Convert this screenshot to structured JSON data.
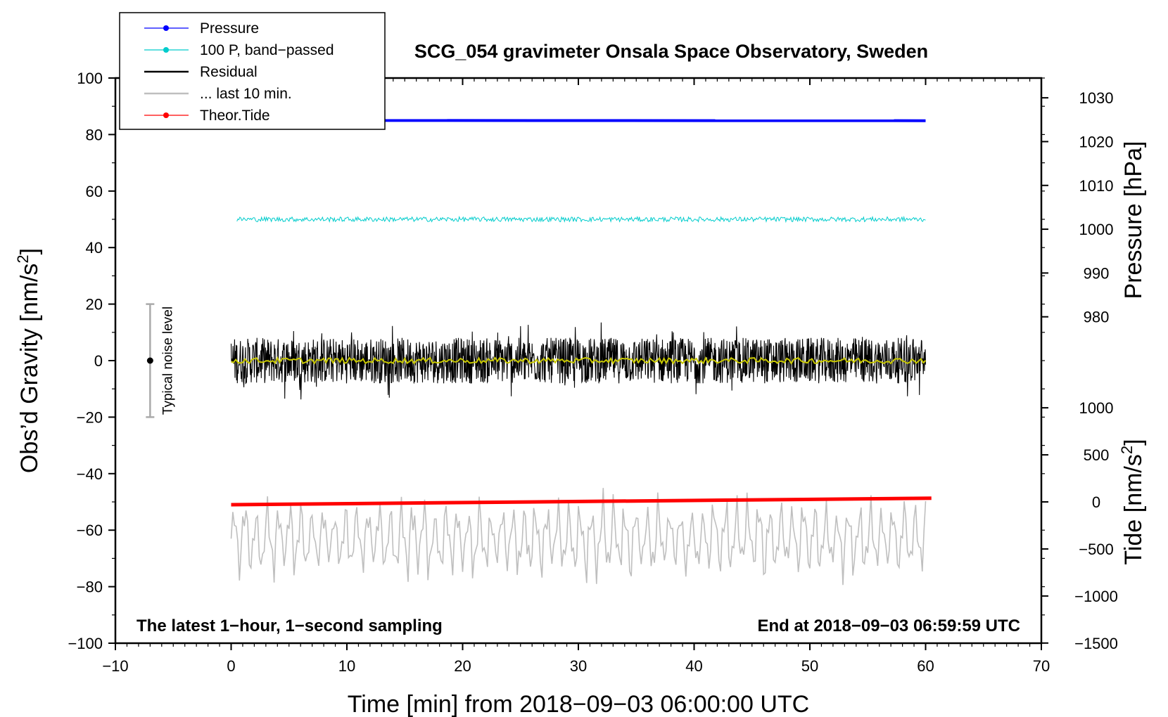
{
  "chart_data": {
    "type": "line",
    "title": "SCG_054 gravimeter Onsala Space Observatory, Sweden",
    "xlabel": "Time [min] from 2018−09−03 06:00:00 UTC",
    "xlim": [
      -10,
      70
    ],
    "xticks": [
      "−10",
      "0",
      "10",
      "20",
      "30",
      "40",
      "50",
      "60",
      "70"
    ],
    "xtick_values": [
      -10,
      0,
      10,
      20,
      30,
      40,
      50,
      60,
      70
    ],
    "left_axis": {
      "label_main": "Obs’d Gravity [nm/s",
      "label_sup": "2",
      "label_end": "]",
      "ylim": [
        -100,
        100
      ],
      "tick_values": [
        -100,
        -80,
        -60,
        -40,
        -20,
        0,
        20,
        40,
        60,
        80,
        100
      ],
      "ticks": [
        "−100",
        "−80",
        "−60",
        "−40",
        "−20",
        "0",
        "20",
        "40",
        "60",
        "80",
        "100"
      ]
    },
    "pressure_axis": {
      "label": "Pressure [hPa]",
      "tick_values": [
        980,
        990,
        1000,
        1010,
        1020,
        1030
      ],
      "ticks": [
        "980",
        "990",
        "1000",
        "1010",
        "1020",
        "1030"
      ],
      "gravity_at_1000": 46.5,
      "gravity_per_hpa": 1.55
    },
    "tide_axis": {
      "label_main": "Tide [nm/s",
      "label_sup": "2",
      "label_end": "]",
      "tick_values": [
        -1500,
        -1000,
        -500,
        0,
        500,
        1000
      ],
      "ticks": [
        "−1500",
        "−1000",
        "−500",
        "0",
        "500",
        "1000"
      ],
      "gravity_at_0": -50,
      "gravity_per_unit": 0.0333
    },
    "legend": [
      {
        "label": "Pressure",
        "color": "#0000ff",
        "style": "line-dot"
      },
      {
        "label": "100 P, band−passed",
        "color": "#00cccc",
        "style": "line-dot"
      },
      {
        "label": "Residual",
        "color": "#000000",
        "style": "line"
      },
      {
        "label": "... last 10 min.",
        "color": "#bfbfbf",
        "style": "line"
      },
      {
        "label": "Theor.Tide",
        "color": "#ff0000",
        "style": "line-dot"
      }
    ],
    "series": [
      {
        "name": "Pressure",
        "color": "#0000ff",
        "x_start": 0,
        "x_end": 60,
        "y_start": 85,
        "y_end": 84.9,
        "pressure_hpa": 1024.2
      },
      {
        "name": "100 P, band−passed",
        "color": "#00cccc",
        "x_start": 0.5,
        "x_end": 60,
        "mean": 50,
        "amplitude": 1.2
      },
      {
        "name": "Residual",
        "color": "#000000",
        "x_start": 0,
        "x_end": 60,
        "mean": 0,
        "amplitude": 18
      },
      {
        "name": "Residual smoothed",
        "color": "#c8c800",
        "x_start": 0,
        "x_end": 60,
        "mean": 0,
        "amplitude": 1
      },
      {
        "name": "... last 10 min.",
        "color": "#bfbfbf",
        "x_start": 0,
        "x_end": 60,
        "mean": -63,
        "amplitude": 16
      },
      {
        "name": "Theor.Tide",
        "color": "#ff0000",
        "x_start": 0,
        "x_end": 60.5,
        "y_start": -51,
        "y_end": -48.7
      }
    ],
    "noise_bar": {
      "label": "Typical noise level",
      "x": -7,
      "y": 0,
      "low": -20,
      "high": 20
    },
    "annotations": {
      "left": "The latest 1−hour, 1−second sampling",
      "right": "End at 2018−09−03 06:59:59 UTC"
    }
  }
}
